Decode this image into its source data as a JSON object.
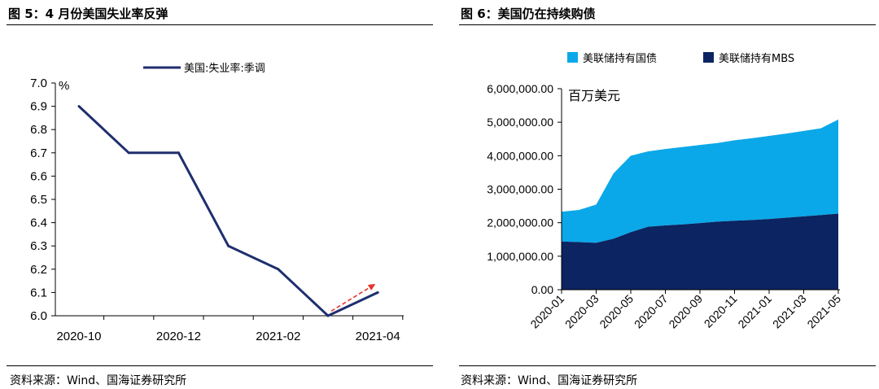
{
  "left": {
    "title": "图 5：4 月份美国失业率反弹",
    "source": "资料来源：Wind、国海证券研究所"
  },
  "right": {
    "title": "图 6：美国仍在持续购债",
    "source": "资料来源：Wind、国海证券研究所"
  },
  "chart_data": [
    {
      "type": "line",
      "unit": "%",
      "ylim": [
        6.0,
        7.0
      ],
      "yticks": [
        "7.0",
        "6.9",
        "6.8",
        "6.7",
        "6.6",
        "6.5",
        "6.4",
        "6.3",
        "6.2",
        "6.1",
        "6.0"
      ],
      "xticks": [
        "2020-10",
        "2020-12",
        "2021-02",
        "2021-04"
      ],
      "x": [
        "2020-10",
        "2020-11",
        "2020-12",
        "2021-01",
        "2021-02",
        "2021-03",
        "2021-04"
      ],
      "series": [
        {
          "name": "美国:失业率:季调",
          "values": [
            6.9,
            6.7,
            6.7,
            6.3,
            6.2,
            6.0,
            6.1
          ],
          "color": "#1f2f6e"
        }
      ],
      "annotation": {
        "type": "arrow",
        "style": "dashed",
        "color": "#e8342e",
        "from": [
          "2021-03",
          6.02
        ],
        "to": [
          "2021-04",
          6.13
        ]
      },
      "grid": false,
      "legend": "top"
    },
    {
      "type": "area",
      "stacked": true,
      "unit": "百万美元",
      "ylim": [
        0,
        6000000
      ],
      "yticks": [
        "6,000,000.00",
        "5,000,000.00",
        "4,000,000.00",
        "3,000,000.00",
        "2,000,000.00",
        "1,000,000.00",
        "0.00"
      ],
      "xticks": [
        "2020-01",
        "2020-03",
        "2020-05",
        "2020-07",
        "2020-09",
        "2020-11",
        "2021-01",
        "2021-03",
        "2021-05"
      ],
      "x": [
        "2020-01",
        "2020-02",
        "2020-03",
        "2020-04",
        "2020-05",
        "2020-06",
        "2020-07",
        "2020-08",
        "2020-09",
        "2020-10",
        "2020-11",
        "2020-12",
        "2021-01",
        "2021-02",
        "2021-03",
        "2021-04",
        "2021-05"
      ],
      "series": [
        {
          "name": "美联储持有MBS",
          "color": "#0c2461",
          "values": [
            1440000,
            1420000,
            1400000,
            1520000,
            1720000,
            1880000,
            1920000,
            1950000,
            1990000,
            2030000,
            2060000,
            2080000,
            2110000,
            2150000,
            2190000,
            2230000,
            2270000
          ]
        },
        {
          "name": "美联储持有国债",
          "color": "#0aa8e8",
          "values": [
            890000,
            960000,
            1140000,
            1950000,
            2280000,
            2250000,
            2280000,
            2310000,
            2330000,
            2350000,
            2400000,
            2440000,
            2480000,
            2510000,
            2550000,
            2590000,
            2810000
          ]
        }
      ],
      "grid": false,
      "legend": "top"
    }
  ]
}
